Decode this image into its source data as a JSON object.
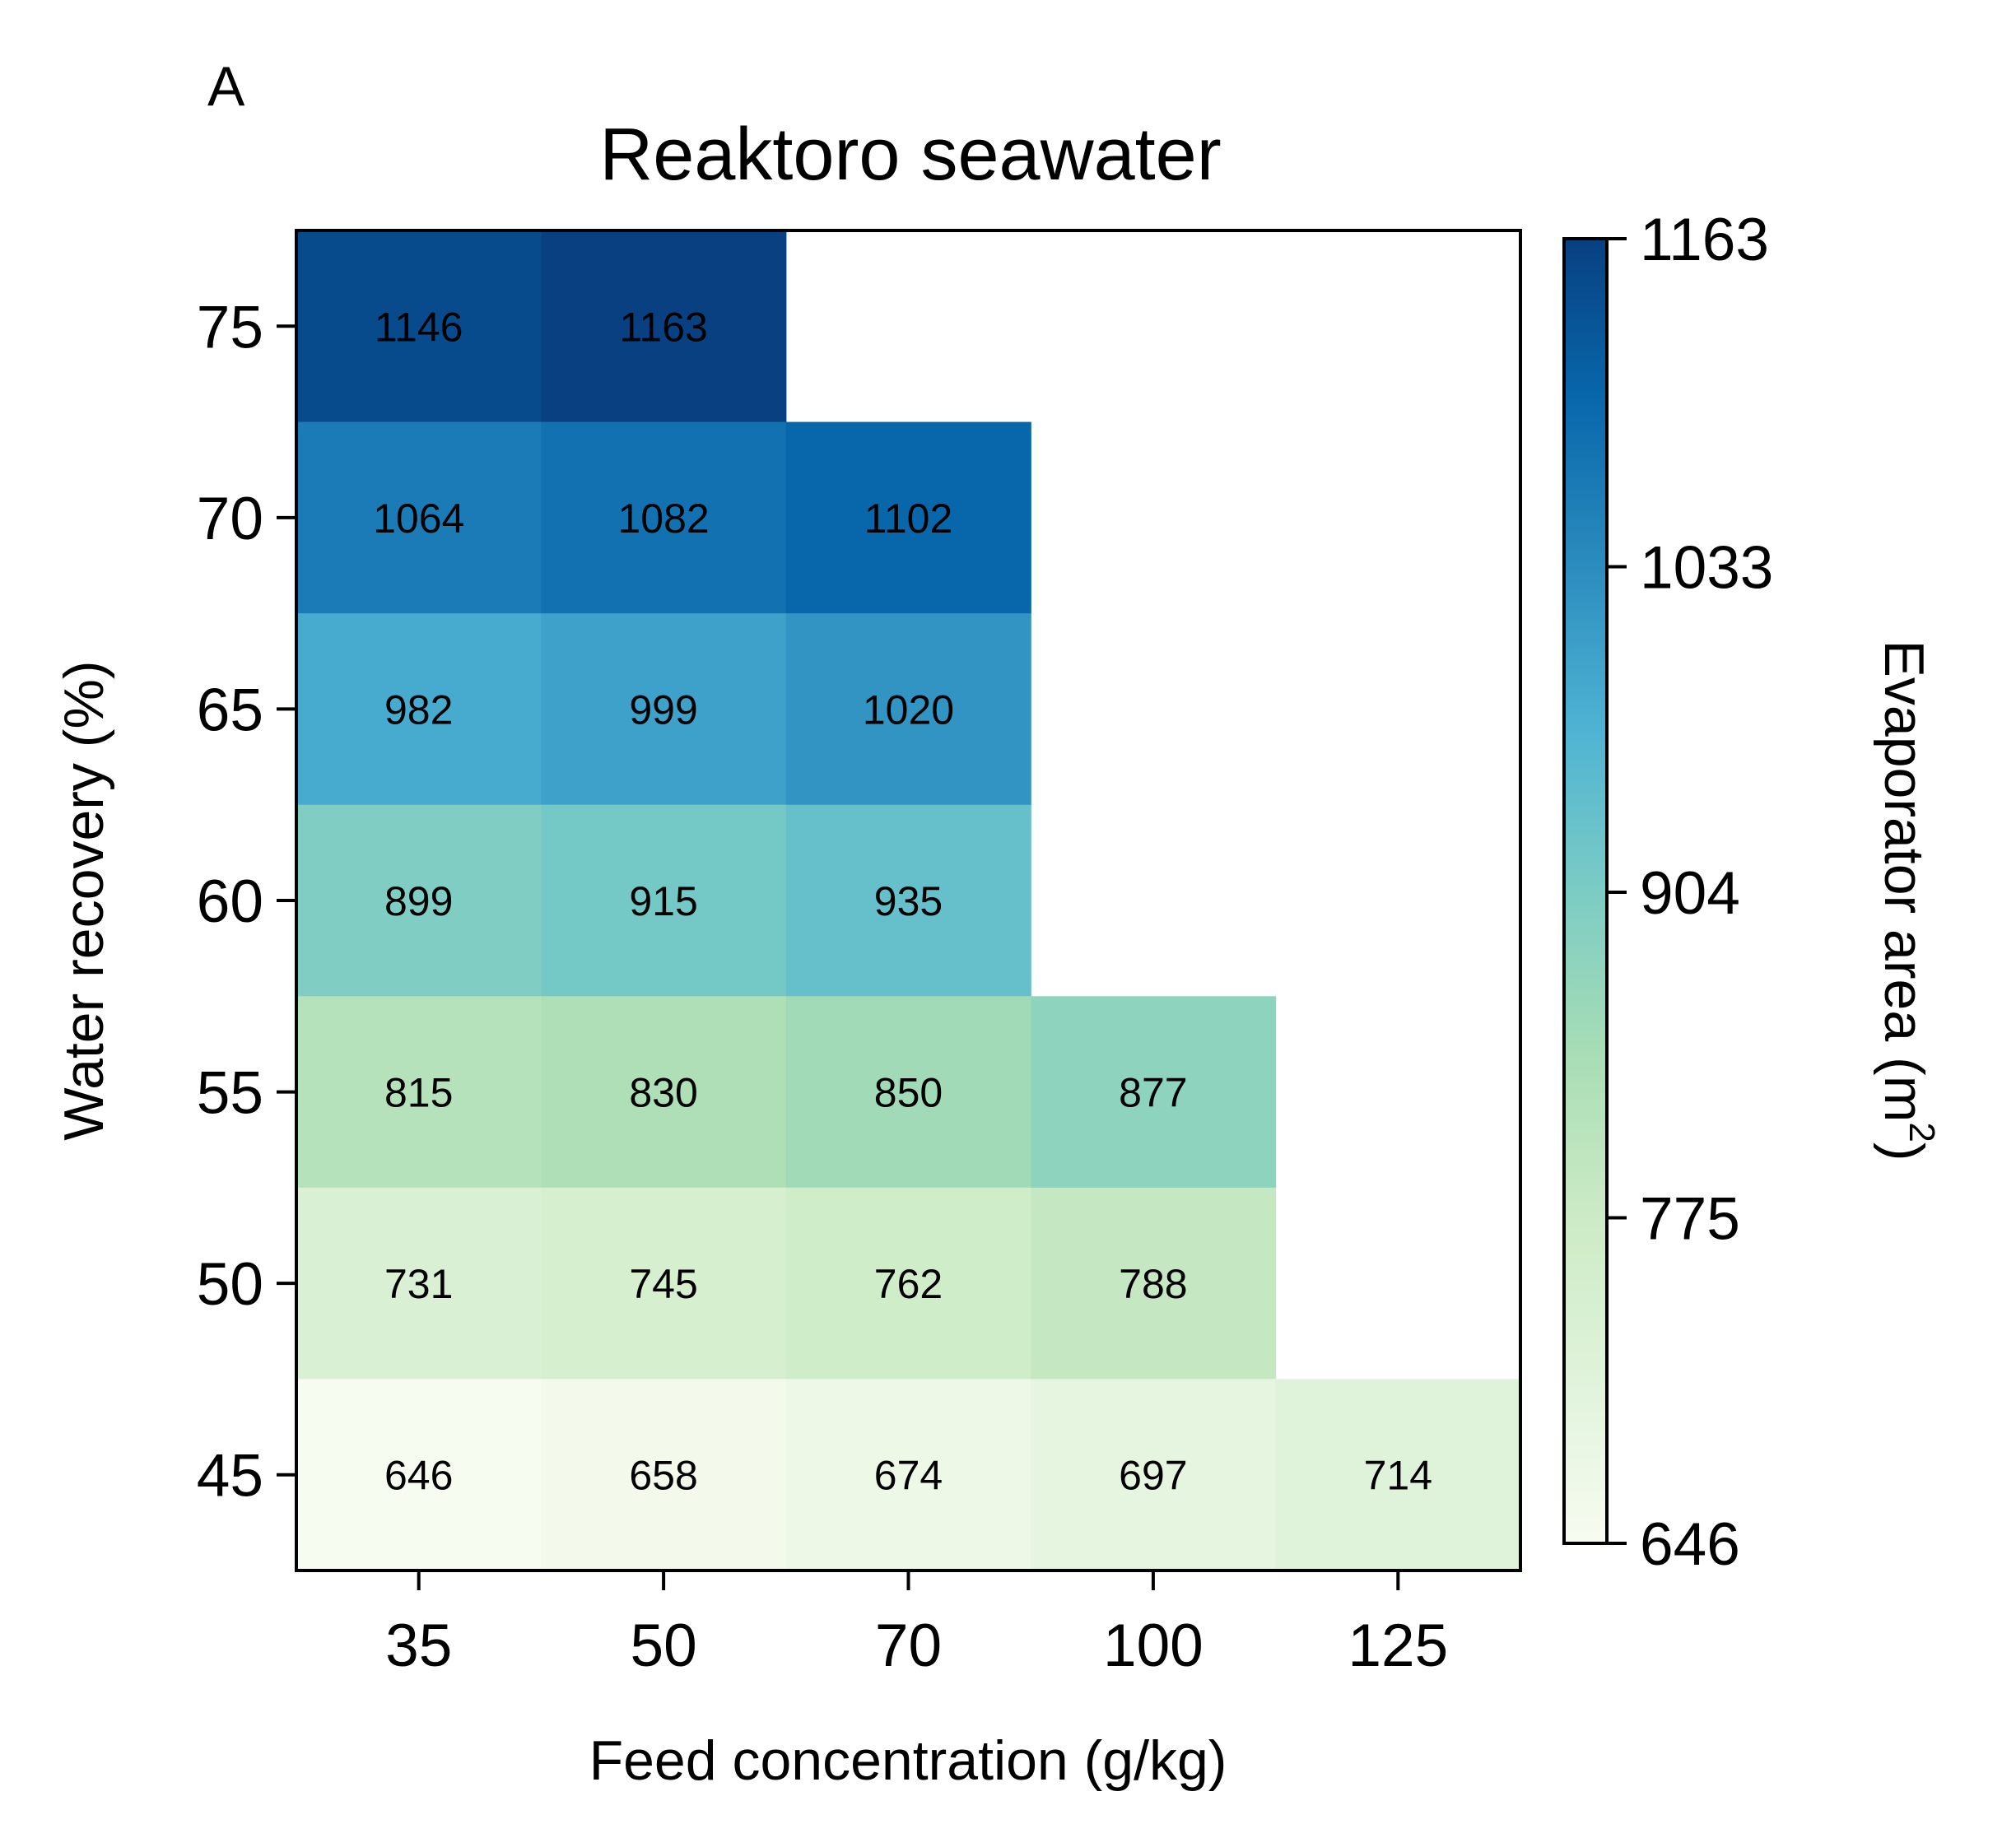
{
  "panel_letter": "A",
  "chart_data": {
    "type": "heatmap",
    "title": "Reaktoro seawater",
    "xlabel": "Feed concentration (g/kg)",
    "ylabel": "Water recovery (%)",
    "x_categories": [
      "35",
      "50",
      "70",
      "100",
      "125"
    ],
    "y_categories": [
      "75",
      "70",
      "65",
      "60",
      "55",
      "50",
      "45"
    ],
    "values": [
      [
        1146,
        1163,
        null,
        null,
        null
      ],
      [
        1064,
        1082,
        1102,
        null,
        null
      ],
      [
        982,
        999,
        1020,
        null,
        null
      ],
      [
        899,
        915,
        935,
        null,
        null
      ],
      [
        815,
        830,
        850,
        877,
        null
      ],
      [
        731,
        745,
        762,
        788,
        null
      ],
      [
        646,
        658,
        674,
        697,
        714
      ]
    ],
    "colorbar": {
      "label_main": "Evaporator area (m",
      "label_sup": "2",
      "label_end": ")",
      "min": 646,
      "max": 1163,
      "ticks": [
        646,
        775,
        904,
        1033,
        1163
      ],
      "colormap": "GnBu",
      "colors": [
        "#f7fcf0",
        "#e0f3db",
        "#ccebc5",
        "#a8ddb5",
        "#7bccc4",
        "#4eb3d3",
        "#2b8cbe",
        "#0868ac",
        "#084081"
      ]
    },
    "grid": false,
    "annotations": "cell values shown in each cell"
  }
}
